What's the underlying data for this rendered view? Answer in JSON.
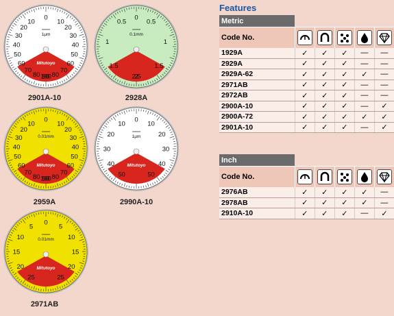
{
  "dials": [
    {
      "id": "2901A-10",
      "caption": "2901A-10",
      "face": "#ffffff",
      "unit": "1μm",
      "brand": "Mitutoyo",
      "top": [
        "10",
        "0",
        "10"
      ],
      "left": [
        "20",
        "30",
        "40",
        "50",
        "60",
        "70",
        "80",
        "90"
      ],
      "right": [
        "20",
        "30",
        "40",
        "50",
        "60",
        "70",
        "80",
        "90"
      ],
      "bottom": [
        "100"
      ]
    },
    {
      "id": "2928A",
      "caption": "2928A",
      "face": "#c8ecc0",
      "unit": "0.1mm",
      "brand": "",
      "top": [
        "0.5",
        "0",
        "0.5"
      ],
      "left": [
        "1",
        "1.5",
        "2"
      ],
      "right": [
        "1",
        "1.5",
        "2"
      ],
      "bottom": [
        "2.5"
      ]
    },
    {
      "id": "2959A",
      "caption": "2959A",
      "face": "#f1e100",
      "unit": "0.01mm",
      "brand": "Mitutoyo",
      "top": [
        "10",
        "0",
        "10"
      ],
      "left": [
        "20",
        "30",
        "40",
        "50",
        "60",
        "70",
        "80",
        "90"
      ],
      "right": [
        "20",
        "30",
        "40",
        "50",
        "60",
        "70",
        "80",
        "90"
      ],
      "bottom": [
        "100"
      ]
    },
    {
      "id": "2990A-10",
      "caption": "2990A-10",
      "face": "#ffffff",
      "unit": "1μm",
      "brand": "Mitutoyo",
      "top": [
        "10",
        "0",
        "10"
      ],
      "left": [
        "20",
        "30",
        "40",
        "50"
      ],
      "right": [
        "20",
        "30",
        "40",
        "50"
      ],
      "bottom": []
    },
    {
      "id": "2971AB",
      "caption": "2971AB",
      "face": "#f1e100",
      "unit": "0.01mm",
      "brand": "Mitutoyo",
      "top": [
        "5",
        "0",
        "5"
      ],
      "left": [
        "10",
        "15",
        "20",
        "25"
      ],
      "right": [
        "10",
        "15",
        "20",
        "25"
      ],
      "bottom": []
    }
  ],
  "features": {
    "title": "Features",
    "code_header": "Code No.",
    "icons": [
      "bezel-clamp-icon",
      "dust-guard-icon",
      "dot-pattern-icon",
      "drop-icon",
      "diamond-icon"
    ],
    "check": "✓",
    "dash": "—",
    "metric": {
      "label": "Metric",
      "rows": [
        {
          "code": "1929A",
          "marks": [
            "✓",
            "✓",
            "✓",
            "—",
            "—"
          ]
        },
        {
          "code": "2929A",
          "marks": [
            "✓",
            "✓",
            "✓",
            "—",
            "—"
          ]
        },
        {
          "code": "2929A-62",
          "marks": [
            "✓",
            "✓",
            "✓",
            "✓",
            "—"
          ]
        },
        {
          "code": "2971AB",
          "marks": [
            "✓",
            "✓",
            "✓",
            "—",
            "—"
          ]
        },
        {
          "code": "2972AB",
          "marks": [
            "✓",
            "✓",
            "✓",
            "—",
            "—"
          ]
        },
        {
          "code": "2900A-10",
          "marks": [
            "✓",
            "✓",
            "✓",
            "—",
            "✓"
          ]
        },
        {
          "code": "2900A-72",
          "marks": [
            "✓",
            "✓",
            "✓",
            "✓",
            "✓"
          ]
        },
        {
          "code": "2901A-10",
          "marks": [
            "✓",
            "✓",
            "✓",
            "—",
            "✓"
          ]
        }
      ]
    },
    "inch": {
      "label": "Inch",
      "rows": [
        {
          "code": "2976AB",
          "marks": [
            "✓",
            "✓",
            "✓",
            "✓",
            "—"
          ]
        },
        {
          "code": "2978AB",
          "marks": [
            "✓",
            "✓",
            "✓",
            "✓",
            "—"
          ]
        },
        {
          "code": "2910A-10",
          "marks": [
            "✓",
            "✓",
            "✓",
            "—",
            "✓"
          ]
        }
      ]
    }
  }
}
